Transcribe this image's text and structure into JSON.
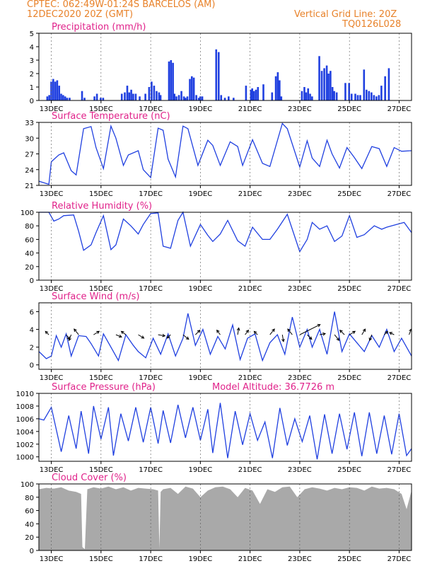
{
  "header": {
    "line1": "CPTEC:   062:49W-01:24S   BARCELOS (AM)",
    "line2": "12DEC2020 20Z (GMT)",
    "grid_note": "Vertical Grid Line: 20Z",
    "run_code": "TQ0126L028",
    "model_altitude": "Model Altitude: 36.7726 m",
    "text_color": "#e8822a",
    "title_color": "#e0228a",
    "series_color": "#2040e0",
    "cloud_color": "#a9a9a9"
  },
  "chart_data": [
    {
      "type": "bar",
      "title": "Precipitation (mm/h)",
      "xlabel": "",
      "ylabel": "",
      "xlim": [
        0,
        15
      ],
      "ylim": [
        0,
        5
      ],
      "yticks": [
        "0",
        "1",
        "2",
        "3",
        "4",
        "5"
      ],
      "xticks": [
        "13DEC",
        "15DEC",
        "17DEC",
        "19DEC",
        "21DEC",
        "23DEC",
        "25DEC",
        "27DEC"
      ],
      "x": [
        0.3,
        0.38,
        0.46,
        0.54,
        0.62,
        0.7,
        0.78,
        0.86,
        0.94,
        1.02,
        1.1,
        1.2,
        1.7,
        1.8,
        2.2,
        2.3,
        2.45,
        2.55,
        3.3,
        3.42,
        3.52,
        3.6,
        3.68,
        3.76,
        3.86,
        4.02,
        4.25,
        4.4,
        4.5,
        4.6,
        4.7,
        4.8,
        4.86,
        5.2,
        5.28,
        5.36,
        5.42,
        5.5,
        5.6,
        5.7,
        5.8,
        5.86,
        5.94,
        6.04,
        6.12,
        6.2,
        6.3,
        6.4,
        6.46,
        6.54,
        7.1,
        7.2,
        7.3,
        7.45,
        7.6,
        7.8,
        8.3,
        8.5,
        8.55,
        8.62,
        8.7,
        8.78,
        9.0,
        9.35,
        9.5,
        9.58,
        9.65,
        9.72,
        10.55,
        10.65,
        10.72,
        10.8,
        10.88,
        10.96,
        11.25,
        11.35,
        11.45,
        11.55,
        11.62,
        11.7,
        11.78,
        11.85,
        11.95,
        12.3,
        12.45,
        12.55,
        12.7,
        12.8,
        12.9,
        13.05,
        13.15,
        13.25,
        13.35,
        13.45,
        13.55,
        13.65,
        13.75,
        13.9,
        14.05
      ],
      "values": [
        0.3,
        0.4,
        1.4,
        1.6,
        1.4,
        1.5,
        1.1,
        0.5,
        0.4,
        0.3,
        0.2,
        0.2,
        0.7,
        0.2,
        0.3,
        0.5,
        0.2,
        0.2,
        0.5,
        0.6,
        1.1,
        0.6,
        0.8,
        0.5,
        0.5,
        0.3,
        0.5,
        1.0,
        1.4,
        1.1,
        0.7,
        0.6,
        0.4,
        2.9,
        3.0,
        2.8,
        0.5,
        0.3,
        0.4,
        0.7,
        0.3,
        0.2,
        0.3,
        1.6,
        1.8,
        1.7,
        0.4,
        0.2,
        0.3,
        0.3,
        3.8,
        3.6,
        0.4,
        0.2,
        0.3,
        0.2,
        1.1,
        0.8,
        0.9,
        0.7,
        0.8,
        1.0,
        1.2,
        0.6,
        1.8,
        2.1,
        1.5,
        0.3,
        0.7,
        1.0,
        0.6,
        0.9,
        0.5,
        0.3,
        3.3,
        2.2,
        2.4,
        2.6,
        2.0,
        2.2,
        1.0,
        0.7,
        0.6,
        1.3,
        1.3,
        0.5,
        0.5,
        0.4,
        0.4,
        2.3,
        0.8,
        0.7,
        0.6,
        0.4,
        0.3,
        0.4,
        1.1,
        1.8,
        2.4
      ]
    },
    {
      "type": "line",
      "title": "Surface Temperature (nC)",
      "xlabel": "",
      "ylabel": "",
      "xlim": [
        0,
        15
      ],
      "ylim": [
        21,
        33
      ],
      "yticks": [
        "21",
        "24",
        "27",
        "30",
        "33"
      ],
      "xticks": [
        "13DEC",
        "15DEC",
        "17DEC",
        "19DEC",
        "21DEC",
        "23DEC",
        "25DEC",
        "27DEC"
      ],
      "x": [
        0,
        0.4,
        0.5,
        0.8,
        1.0,
        1.3,
        1.5,
        1.8,
        2.1,
        2.3,
        2.6,
        2.9,
        3.1,
        3.4,
        3.6,
        4.0,
        4.2,
        4.5,
        4.8,
        5.0,
        5.2,
        5.5,
        5.8,
        6.0,
        6.4,
        6.8,
        7.0,
        7.3,
        7.7,
        8.0,
        8.2,
        8.6,
        9.0,
        9.3,
        9.8,
        10.0,
        10.5,
        10.8,
        11.0,
        11.3,
        11.6,
        11.8,
        12.1,
        12.4,
        12.7,
        13.0,
        13.4,
        13.7,
        14.0,
        14.3,
        14.6,
        15
      ],
      "values": [
        21.8,
        21.2,
        25.5,
        26.8,
        27.2,
        23.8,
        23.0,
        31.8,
        32.2,
        28.2,
        24.2,
        32.3,
        30.0,
        24.8,
        26.8,
        27.6,
        24.0,
        22.5,
        31.9,
        31.5,
        26.0,
        22.6,
        32.3,
        31.8,
        24.8,
        29.6,
        28.6,
        24.8,
        29.3,
        28.4,
        24.8,
        29.7,
        25.2,
        24.6,
        32.8,
        31.8,
        24.5,
        29.5,
        26.2,
        24.6,
        29.6,
        27.0,
        24.3,
        28.2,
        26.3,
        24.2,
        28.4,
        28.0,
        24.6,
        28.2,
        27.5,
        27.6
      ]
    },
    {
      "type": "line",
      "title": "Relative Humidity (%)",
      "xlabel": "",
      "ylabel": "",
      "xlim": [
        0,
        15
      ],
      "ylim": [
        0,
        100
      ],
      "yticks": [
        "0",
        "20",
        "40",
        "60",
        "80",
        "100"
      ],
      "xticks": [
        "13DEC",
        "15DEC",
        "17DEC",
        "19DEC",
        "21DEC",
        "23DEC",
        "25DEC",
        "27DEC"
      ],
      "x": [
        0,
        0.4,
        0.6,
        0.8,
        1.0,
        1.4,
        1.6,
        1.8,
        2.1,
        2.3,
        2.6,
        2.9,
        3.1,
        3.4,
        3.7,
        4.0,
        4.2,
        4.5,
        4.8,
        5.0,
        5.3,
        5.6,
        5.8,
        6.1,
        6.5,
        6.8,
        7.0,
        7.3,
        7.6,
        8.0,
        8.3,
        8.6,
        9.0,
        9.3,
        9.6,
        10.0,
        10.5,
        10.8,
        11.0,
        11.3,
        11.6,
        11.9,
        12.2,
        12.5,
        12.8,
        13.1,
        13.5,
        13.8,
        14.0,
        14.4,
        14.7,
        15
      ],
      "values": [
        100,
        100,
        87,
        90,
        95,
        96,
        72,
        44,
        52,
        70,
        95,
        45,
        52,
        90,
        80,
        68,
        82,
        98,
        99,
        50,
        47,
        88,
        100,
        50,
        82,
        66,
        57,
        68,
        88,
        58,
        50,
        78,
        60,
        60,
        75,
        97,
        42,
        60,
        85,
        75,
        80,
        57,
        65,
        95,
        63,
        67,
        80,
        75,
        78,
        82,
        85,
        70
      ]
    },
    {
      "type": "line",
      "title": "Surface Wind (m/s)",
      "xlabel": "",
      "ylabel": "",
      "xlim": [
        0,
        15
      ],
      "ylim": [
        -0.5,
        7
      ],
      "yticks": [
        "0",
        "2",
        "4",
        "6"
      ],
      "xticks": [
        "13DEC",
        "15DEC",
        "17DEC",
        "19DEC",
        "21DEC",
        "23DEC",
        "25DEC",
        "27DEC"
      ],
      "x": [
        0,
        0.3,
        0.5,
        0.7,
        0.9,
        1.1,
        1.3,
        1.6,
        1.9,
        2.1,
        2.4,
        2.6,
        2.9,
        3.2,
        3.5,
        3.8,
        4.0,
        4.3,
        4.6,
        4.9,
        5.2,
        5.5,
        5.8,
        6.0,
        6.3,
        6.6,
        6.9,
        7.2,
        7.5,
        7.8,
        8.1,
        8.4,
        8.7,
        9.0,
        9.3,
        9.6,
        9.9,
        10.2,
        10.5,
        10.8,
        11.0,
        11.3,
        11.6,
        11.9,
        12.2,
        12.5,
        12.8,
        13.1,
        13.4,
        13.7,
        14.0,
        14.3,
        14.6,
        15
      ],
      "values": [
        1.5,
        0.7,
        1.0,
        3.3,
        2.0,
        3.5,
        1.0,
        3.3,
        3.2,
        2.4,
        1.0,
        3.5,
        2.0,
        0.5,
        3.4,
        2.2,
        1.5,
        0.8,
        3.0,
        1.2,
        3.5,
        1.0,
        3.0,
        5.8,
        2.2,
        4.0,
        1.2,
        3.2,
        1.8,
        4.5,
        0.6,
        3.0,
        3.5,
        0.5,
        2.5,
        3.4,
        1.2,
        5.4,
        2.0,
        4.0,
        2.0,
        4.0,
        1.2,
        6.0,
        1.5,
        3.5,
        2.5,
        1.5,
        3.3,
        2.0,
        4.0,
        1.5,
        3.0,
        1.0
      ],
      "arrows": [
        {
          "x": 0.4,
          "u": -0.3,
          "v": 0.3
        },
        {
          "x": 1.1,
          "u": 0.3,
          "v": -0.4
        },
        {
          "x": 1.3,
          "u": -0.2,
          "v": -0.5
        },
        {
          "x": 1.6,
          "u": -0.4,
          "v": 0.5
        },
        {
          "x": 2.2,
          "u": 0.5,
          "v": 0.3
        },
        {
          "x": 3.1,
          "u": 0.5,
          "v": -0.2
        },
        {
          "x": 3.5,
          "u": -0.4,
          "v": 0.3
        },
        {
          "x": 4.0,
          "u": 0.5,
          "v": -0.3
        },
        {
          "x": 4.8,
          "u": 0.6,
          "v": -0.1
        },
        {
          "x": 5.3,
          "u": -0.3,
          "v": -0.3
        },
        {
          "x": 5.8,
          "u": 0.5,
          "v": -0.4
        },
        {
          "x": 6.3,
          "u": 0.4,
          "v": 0.4
        },
        {
          "x": 7.3,
          "u": -0.3,
          "v": 0.4
        },
        {
          "x": 8.0,
          "u": 0.1,
          "v": 0.6
        },
        {
          "x": 8.3,
          "u": 0.3,
          "v": 0.4
        },
        {
          "x": 8.8,
          "u": -0.3,
          "v": 0.3
        },
        {
          "x": 9.3,
          "u": 0.4,
          "v": 0.5
        },
        {
          "x": 9.8,
          "u": 0.1,
          "v": -0.6
        },
        {
          "x": 10.2,
          "u": -0.4,
          "v": 0.5
        },
        {
          "x": 10.5,
          "u": 1.8,
          "v": 0.9
        },
        {
          "x": 10.8,
          "u": 0.4,
          "v": -0.4
        },
        {
          "x": 11.3,
          "u": 0.5,
          "v": 0.1
        },
        {
          "x": 11.9,
          "u": 0.4,
          "v": -0.5
        },
        {
          "x": 12.3,
          "u": -0.4,
          "v": 0.4
        },
        {
          "x": 12.5,
          "u": 0.5,
          "v": 0.3
        },
        {
          "x": 13.0,
          "u": 0.3,
          "v": 0.5
        },
        {
          "x": 13.4,
          "u": -0.2,
          "v": -0.5
        },
        {
          "x": 13.9,
          "u": 0.3,
          "v": 0.3
        },
        {
          "x": 14.3,
          "u": -0.4,
          "v": 0.2
        },
        {
          "x": 14.9,
          "u": 0.2,
          "v": 0.5
        }
      ]
    },
    {
      "type": "line",
      "title": "Surface Pressure (hPa)",
      "xlabel": "",
      "ylabel": "",
      "xlim": [
        0,
        15
      ],
      "ylim": [
        999.3,
        1010
      ],
      "yticks": [
        "1000",
        "1002",
        "1004",
        "1006",
        "1008",
        "1010"
      ],
      "xticks": [
        "13DEC",
        "15DEC",
        "17DEC",
        "19DEC",
        "21DEC",
        "23DEC",
        "25DEC",
        "27DEC"
      ],
      "x": [
        0,
        0.2,
        0.5,
        0.9,
        1.2,
        1.5,
        1.7,
        2.0,
        2.2,
        2.5,
        2.8,
        3.0,
        3.3,
        3.6,
        3.9,
        4.2,
        4.5,
        4.8,
        5.0,
        5.3,
        5.6,
        5.9,
        6.2,
        6.5,
        6.8,
        7.0,
        7.3,
        7.6,
        7.9,
        8.2,
        8.5,
        8.8,
        9.1,
        9.4,
        9.7,
        10.0,
        10.3,
        10.6,
        10.9,
        11.2,
        11.5,
        11.8,
        12.1,
        12.4,
        12.7,
        13.0,
        13.3,
        13.6,
        13.9,
        14.2,
        14.5,
        14.8,
        15
      ],
      "values": [
        1006,
        1005.8,
        1007.8,
        1000.8,
        1006.5,
        1001.3,
        1007.2,
        1000.5,
        1008.0,
        1002.8,
        1007.8,
        1000.2,
        1006.8,
        1002.5,
        1007.8,
        1002.3,
        1007.8,
        1002.1,
        1007.3,
        1002.2,
        1008.2,
        1003.0,
        1007.8,
        1002.6,
        1007.5,
        1000.6,
        1008.5,
        999.8,
        1007.2,
        1001.9,
        1006.8,
        1002.6,
        1005.5,
        999.8,
        1007.7,
        1001.8,
        1006.0,
        1002.4,
        1006.5,
        999.6,
        1006.7,
        1000.5,
        1006.8,
        1001.2,
        1007.0,
        1000.1,
        1007.0,
        1000.5,
        1006.5,
        1000.4,
        1006.8,
        1000.2,
        1001.3
      ]
    },
    {
      "type": "area",
      "title": "Cloud Cover (%)",
      "xlabel": "",
      "ylabel": "",
      "xlim": [
        0,
        15
      ],
      "ylim": [
        0,
        100
      ],
      "yticks": [
        "0",
        "20",
        "40",
        "60",
        "80",
        "100"
      ],
      "xticks": [
        "13DEC",
        "15DEC",
        "17DEC",
        "19DEC",
        "21DEC",
        "23DEC",
        "25DEC",
        "27DEC"
      ],
      "x": [
        0,
        0.3,
        0.6,
        0.9,
        1.2,
        1.5,
        1.7,
        1.75,
        1.85,
        1.95,
        2.2,
        2.5,
        2.8,
        3.1,
        3.4,
        3.7,
        4.0,
        4.3,
        4.6,
        4.8,
        4.85,
        4.9,
        5.0,
        5.3,
        5.6,
        5.9,
        6.2,
        6.5,
        6.8,
        7.1,
        7.4,
        7.7,
        8.0,
        8.3,
        8.6,
        8.9,
        9.2,
        9.5,
        9.8,
        10.1,
        10.4,
        10.7,
        11.0,
        11.3,
        11.6,
        11.9,
        12.2,
        12.5,
        12.8,
        13.1,
        13.4,
        13.7,
        14.0,
        14.3,
        14.6,
        14.8,
        15
      ],
      "values": [
        92,
        94,
        93,
        95,
        90,
        88,
        85,
        5,
        2,
        92,
        95,
        93,
        96,
        92,
        95,
        90,
        94,
        93,
        92,
        90,
        3,
        88,
        92,
        94,
        85,
        96,
        93,
        80,
        90,
        95,
        96,
        92,
        80,
        94,
        90,
        70,
        92,
        88,
        95,
        96,
        80,
        92,
        95,
        93,
        90,
        94,
        92,
        95,
        94,
        90,
        96,
        93,
        94,
        92,
        85,
        62,
        90
      ]
    }
  ]
}
